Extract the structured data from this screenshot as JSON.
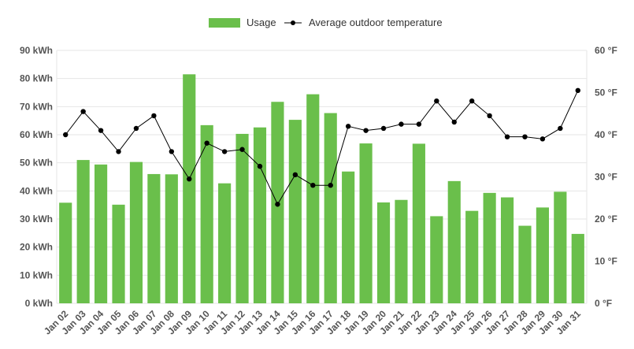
{
  "chart_data": {
    "type": "bar",
    "title": "",
    "categories": [
      "Jan 02",
      "Jan 03",
      "Jan 04",
      "Jan 05",
      "Jan 06",
      "Jan 07",
      "Jan 08",
      "Jan 09",
      "Jan 10",
      "Jan 11",
      "Jan 12",
      "Jan 13",
      "Jan 14",
      "Jan 15",
      "Jan 16",
      "Jan 17",
      "Jan 18",
      "Jan 19",
      "Jan 20",
      "Jan 21",
      "Jan 22",
      "Jan 23",
      "Jan 24",
      "Jan 25",
      "Jan 26",
      "Jan 27",
      "Jan 28",
      "Jan 29",
      "Jan 30",
      "Jan 31"
    ],
    "series": [
      {
        "name": "Usage",
        "type": "bar",
        "axis": "left",
        "color": "#6abf4b",
        "values": [
          35.8,
          51.0,
          49.4,
          35.1,
          50.3,
          46.0,
          45.9,
          81.5,
          63.4,
          42.7,
          60.3,
          62.6,
          71.7,
          65.3,
          74.4,
          67.7,
          46.9,
          56.9,
          35.9,
          36.8,
          56.8,
          31.0,
          43.5,
          32.9,
          39.3,
          37.7,
          27.6,
          34.1,
          39.7,
          24.7
        ]
      },
      {
        "name": "Average outdoor temperature",
        "type": "line",
        "axis": "right",
        "color": "#000000",
        "values": [
          40.0,
          45.5,
          41.0,
          36.0,
          41.5,
          44.5,
          36.0,
          29.5,
          38.0,
          36.0,
          36.5,
          32.5,
          23.5,
          30.5,
          28.0,
          28.0,
          42.0,
          41.0,
          41.5,
          42.5,
          42.5,
          48.0,
          43.0,
          48.0,
          44.5,
          39.5,
          39.5,
          39.0,
          41.5,
          50.5
        ]
      }
    ],
    "y_left": {
      "ylim": [
        0,
        90
      ],
      "ticks": [
        0,
        10,
        20,
        30,
        40,
        50,
        60,
        70,
        80,
        90
      ],
      "unit": " kWh"
    },
    "y_right": {
      "ylim": [
        0,
        60
      ],
      "ticks": [
        0,
        10,
        20,
        30,
        40,
        50,
        60
      ],
      "unit": " °F"
    },
    "grid": true,
    "legend": "top-center"
  }
}
